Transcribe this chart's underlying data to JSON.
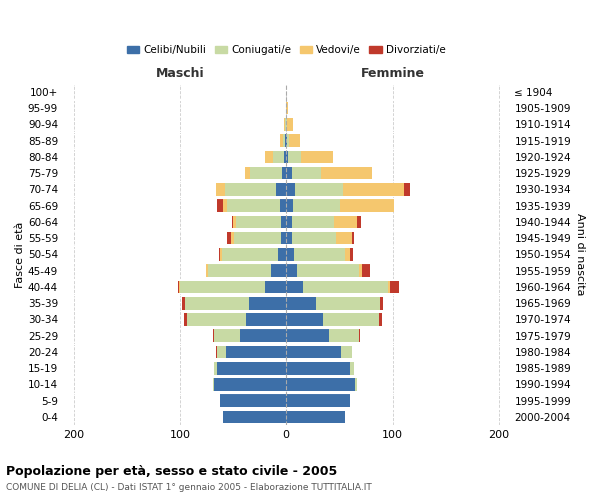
{
  "age_groups": [
    "0-4",
    "5-9",
    "10-14",
    "15-19",
    "20-24",
    "25-29",
    "30-34",
    "35-39",
    "40-44",
    "45-49",
    "50-54",
    "55-59",
    "60-64",
    "65-69",
    "70-74",
    "75-79",
    "80-84",
    "85-89",
    "90-94",
    "95-99",
    "100+"
  ],
  "birth_years": [
    "2000-2004",
    "1995-1999",
    "1990-1994",
    "1985-1989",
    "1980-1984",
    "1975-1979",
    "1970-1974",
    "1965-1969",
    "1960-1964",
    "1955-1959",
    "1950-1954",
    "1945-1949",
    "1940-1944",
    "1935-1939",
    "1930-1934",
    "1925-1929",
    "1920-1924",
    "1915-1919",
    "1910-1914",
    "1905-1909",
    "≤ 1904"
  ],
  "maschi": {
    "celibi": [
      59,
      62,
      68,
      65,
      57,
      43,
      38,
      35,
      20,
      14,
      8,
      5,
      5,
      6,
      10,
      4,
      2,
      1,
      0,
      0,
      0
    ],
    "coniugati": [
      0,
      0,
      1,
      3,
      8,
      25,
      55,
      60,
      80,
      60,
      52,
      44,
      42,
      50,
      48,
      30,
      10,
      2,
      1,
      0,
      0
    ],
    "vedovi": [
      0,
      0,
      0,
      0,
      0,
      0,
      0,
      0,
      1,
      1,
      2,
      3,
      3,
      3,
      8,
      5,
      8,
      3,
      1,
      0,
      0
    ],
    "divorziati": [
      0,
      0,
      0,
      0,
      1,
      1,
      3,
      3,
      1,
      0,
      1,
      4,
      1,
      6,
      0,
      0,
      0,
      0,
      0,
      0,
      0
    ]
  },
  "femmine": {
    "nubili": [
      55,
      60,
      65,
      60,
      52,
      40,
      35,
      28,
      16,
      10,
      7,
      5,
      5,
      6,
      8,
      5,
      2,
      1,
      0,
      0,
      0
    ],
    "coniugate": [
      0,
      0,
      2,
      4,
      10,
      28,
      52,
      60,
      80,
      58,
      48,
      42,
      40,
      45,
      45,
      28,
      12,
      2,
      1,
      0,
      0
    ],
    "vedove": [
      0,
      0,
      0,
      0,
      0,
      0,
      0,
      0,
      2,
      3,
      5,
      15,
      22,
      50,
      58,
      48,
      30,
      10,
      5,
      2,
      0
    ],
    "divorziate": [
      0,
      0,
      0,
      0,
      0,
      1,
      3,
      3,
      8,
      8,
      3,
      2,
      3,
      0,
      5,
      0,
      0,
      0,
      0,
      0,
      0
    ]
  },
  "colors": {
    "celibi_nubili": "#3d6fa8",
    "coniugati": "#c8daa4",
    "vedovi": "#f5c76e",
    "divorziati": "#c0392b"
  },
  "xlim": [
    -210,
    210
  ],
  "xticks": [
    -200,
    -100,
    0,
    100,
    200
  ],
  "xticklabels": [
    "200",
    "100",
    "0",
    "100",
    "200"
  ],
  "title": "Popolazione per età, sesso e stato civile - 2005",
  "subtitle": "COMUNE DI DELIA (CL) - Dati ISTAT 1° gennaio 2005 - Elaborazione TUTTITALIA.IT",
  "ylabel_left": "Fasce di età",
  "ylabel_right": "Anni di nascita",
  "legend_labels": [
    "Celibi/Nubili",
    "Coniugati/e",
    "Vedovi/e",
    "Divorziati/e"
  ],
  "maschi_label": "Maschi",
  "femmine_label": "Femmine",
  "background_color": "#ffffff",
  "grid_color": "#cccccc"
}
